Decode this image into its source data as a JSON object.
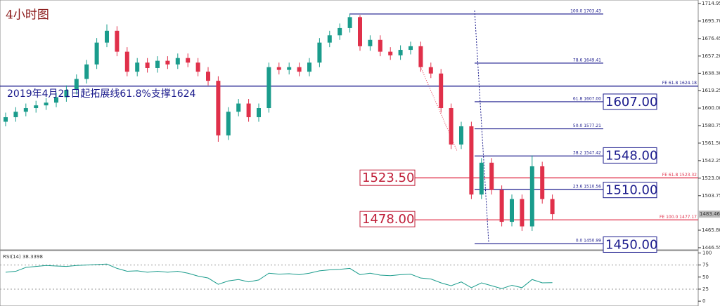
{
  "chart_data": {
    "type": "candlestick",
    "title": "4小时图",
    "annotation": "2019年4月21日起拓展线61.8%支撑1624",
    "open": [
      1585,
      1590,
      1596,
      1600,
      1603,
      1606,
      1612,
      1620,
      1632,
      1648,
      1672,
      1685,
      1662,
      1640,
      1650,
      1644,
      1652,
      1648,
      1655,
      1650,
      1640,
      1630,
      1570,
      1596,
      1605,
      1590,
      1600,
      1645,
      1642,
      1645,
      1640,
      1650,
      1672,
      1680,
      1688,
      1700,
      1668,
      1675,
      1662,
      1658,
      1664,
      1668,
      1645,
      1638,
      1600,
      1560,
      1580,
      1505,
      1540,
      1510,
      1475,
      1500,
      1470,
      1536,
      1500
    ],
    "high": [
      1595,
      1601,
      1605,
      1608,
      1611,
      1617,
      1625,
      1637,
      1653,
      1677,
      1692,
      1690,
      1667,
      1655,
      1655,
      1657,
      1657,
      1660,
      1660,
      1655,
      1645,
      1635,
      1601,
      1610,
      1610,
      1605,
      1650,
      1650,
      1650,
      1650,
      1655,
      1677,
      1685,
      1693,
      1703.43,
      1702,
      1680,
      1680,
      1667,
      1669,
      1673,
      1673,
      1650,
      1643,
      1605,
      1585,
      1585,
      1545,
      1545,
      1515,
      1505,
      1505,
      1548,
      1541,
      1505
    ],
    "low": [
      1580,
      1585,
      1591,
      1595,
      1598,
      1601,
      1607,
      1615,
      1627,
      1643,
      1667,
      1657,
      1635,
      1635,
      1639,
      1639,
      1643,
      1643,
      1645,
      1635,
      1625,
      1563,
      1565,
      1591,
      1585,
      1585,
      1595,
      1637,
      1637,
      1635,
      1635,
      1645,
      1667,
      1675,
      1683,
      1663,
      1663,
      1657,
      1653,
      1653,
      1659,
      1640,
      1633,
      1595,
      1555,
      1555,
      1500,
      1500,
      1505,
      1470,
      1470,
      1465,
      1465,
      1495,
      1477
    ],
    "close": [
      1590,
      1596,
      1600,
      1603,
      1606,
      1612,
      1620,
      1632,
      1648,
      1672,
      1685,
      1662,
      1640,
      1650,
      1644,
      1652,
      1648,
      1655,
      1650,
      1640,
      1630,
      1570,
      1596,
      1605,
      1590,
      1600,
      1645,
      1642,
      1645,
      1640,
      1650,
      1672,
      1680,
      1688,
      1700,
      1668,
      1675,
      1662,
      1658,
      1664,
      1668,
      1645,
      1638,
      1600,
      1560,
      1580,
      1505,
      1540,
      1510,
      1475,
      1500,
      1470,
      1536,
      1500,
      1483.46
    ],
    "up_color": "#1a9c8c",
    "down_color": "#e0304a",
    "ylim": [
      1444.2,
      1718.8
    ],
    "yticks": [
      1714.95,
      {
        "value": 1695.7,
        "label": "1695.70"
      },
      1676.45,
      {
        "value": 1657.2,
        "label": "1657.20"
      },
      {
        "value": 1638.3,
        "label": "1638.30"
      },
      1619.25,
      {
        "value": 1600,
        "label": "1600.00"
      },
      1580.75,
      {
        "value": 1561.5,
        "label": "1561.50"
      },
      1542.25,
      {
        "value": 1523,
        "label": "1523.00"
      },
      1503.75,
      {
        "value": 1465.8,
        "label": "1465.80"
      },
      1446.55
    ],
    "current_price": 1483.46,
    "fib_levels": [
      {
        "value": 1703.43,
        "label": "100.0  1703.43"
      },
      {
        "value": 1649.41,
        "label": "78.6  1649.41"
      },
      {
        "value": 1607,
        "label": "61.8  1607.00"
      },
      {
        "value": 1577.21,
        "label": "50.0  1577.21"
      },
      {
        "value": 1547.42,
        "label": "38.2  1547.42"
      },
      {
        "value": 1510.56,
        "label": "23.6  1510.56"
      },
      {
        "value": 1450.99,
        "label": "0.0  1450.99"
      }
    ],
    "fe_levels": [
      {
        "value": 1624.18,
        "label": "FE 61.8  1624.18",
        "color": "#1a1a8c"
      },
      {
        "value": 1523.32,
        "label": "FE 61.8  1523.32",
        "color": "#e0304a"
      },
      {
        "value": 1477.17,
        "label": "FE 100.0  1477.17",
        "color": "#e0304a"
      }
    ],
    "blue_boxes": [
      {
        "value": 1607,
        "label": "1607.00"
      },
      {
        "value": 1548,
        "label": "1548.00"
      },
      {
        "value": 1510,
        "label": "1510.00"
      },
      {
        "value": 1450,
        "label": "1450.00"
      }
    ],
    "red_boxes": [
      {
        "value": 1523.5,
        "label": "1523.50"
      },
      {
        "value": 1478,
        "label": "1478.00"
      }
    ],
    "rsi_label": "RSI(14) 38.3398",
    "rsi": [
      60,
      62,
      70,
      72,
      74,
      73,
      72,
      74,
      75,
      76,
      77,
      68,
      62,
      63,
      60,
      62,
      60,
      62,
      58,
      52,
      48,
      35,
      42,
      45,
      40,
      44,
      58,
      56,
      57,
      55,
      58,
      63,
      65,
      66,
      68,
      55,
      58,
      54,
      53,
      55,
      56,
      48,
      46,
      38,
      32,
      40,
      28,
      38,
      32,
      26,
      33,
      28,
      45,
      38,
      38.3398
    ],
    "rsi_color": "#1a9c8c",
    "rsi_ylim": [
      -10,
      105
    ],
    "rsi_yticks": [
      100,
      75,
      50,
      25,
      0
    ]
  }
}
